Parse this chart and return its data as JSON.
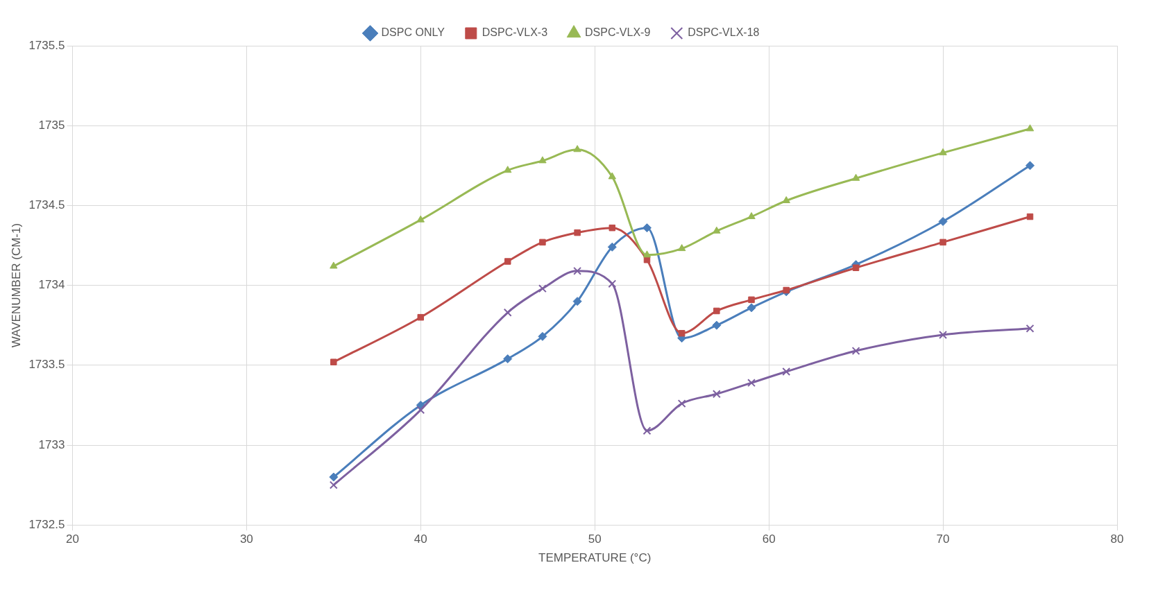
{
  "chart_data": {
    "type": "line",
    "xlabel": "TEMPERATURE (°C)",
    "ylabel": "WAVENUMBER (CM-1)",
    "xlim": [
      20,
      80
    ],
    "xticks": [
      20,
      30,
      40,
      50,
      60,
      70,
      80
    ],
    "ylim": [
      1732.5,
      1735.5
    ],
    "yticks": [
      1732.5,
      1733,
      1733.5,
      1734,
      1734.5,
      1735,
      1735.5
    ],
    "grid": true,
    "legend": "top",
    "line_style": "solid",
    "x": [
      35,
      40,
      45,
      47,
      49,
      51,
      53,
      55,
      57,
      59,
      61,
      65,
      70,
      75
    ],
    "series": [
      {
        "name": "DSPC ONLY",
        "color": "#4a7ebb",
        "marker": "diamond",
        "values": [
          1732.8,
          1733.25,
          1733.54,
          1733.68,
          1733.9,
          1734.24,
          1734.36,
          1733.67,
          1733.75,
          1733.86,
          1733.96,
          1734.13,
          1734.4,
          1734.75
        ]
      },
      {
        "name": "DSPC-VLX-3",
        "color": "#be4b48",
        "marker": "square",
        "values": [
          1733.52,
          1733.8,
          1734.15,
          1734.27,
          1734.33,
          1734.36,
          1734.16,
          1733.7,
          1733.84,
          1733.91,
          1733.97,
          1734.11,
          1734.27,
          1734.43
        ]
      },
      {
        "name": "DSPC-VLX-9",
        "color": "#98b954",
        "marker": "triangle",
        "values": [
          1734.12,
          1734.41,
          1734.72,
          1734.78,
          1734.85,
          1734.68,
          1734.19,
          1734.23,
          1734.34,
          1734.43,
          1734.53,
          1734.67,
          1734.83,
          1734.98
        ]
      },
      {
        "name": "DSPC-VLX-18",
        "color": "#7d60a0",
        "marker": "cross",
        "values": [
          1732.75,
          1733.22,
          1733.83,
          1733.98,
          1734.09,
          1734.01,
          1733.09,
          1733.26,
          1733.32,
          1733.39,
          1733.46,
          1733.59,
          1733.69,
          1733.73
        ]
      }
    ]
  }
}
